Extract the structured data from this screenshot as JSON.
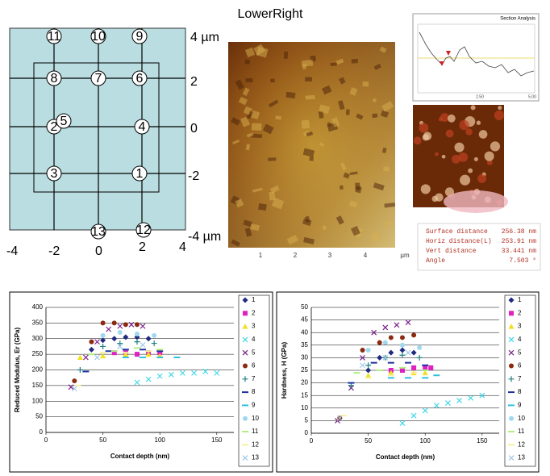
{
  "diagram": {
    "points": [
      "11",
      "10",
      "9",
      "8",
      "7",
      "6",
      "2",
      "5",
      "4",
      "3",
      "1",
      "13",
      "12"
    ],
    "right_labels": [
      "4 µm",
      "2",
      "0",
      "-2",
      "-4 µm"
    ],
    "bottom_labels": [
      "-4",
      "-2",
      "0",
      "2",
      "4"
    ]
  },
  "image": {
    "title": "LowerRight",
    "xticks": [
      "1",
      "2",
      "3",
      "4"
    ],
    "unit": "µm"
  },
  "section": {
    "title": "Section Analysis",
    "xticks": [
      "2.50",
      "5.00"
    ],
    "table": [
      [
        "Surface distance",
        "256.38 nm"
      ],
      [
        "Horiz distance(L)",
        "253.91 nm"
      ],
      [
        "Vert distance",
        "33.441 nm"
      ],
      [
        "Angle",
        "7.503 °"
      ]
    ]
  },
  "chart_data": [
    {
      "type": "scatter",
      "x_label": "Contact depth (nm)",
      "y_label": "Reduced Modulus, Er (GPa)",
      "xlim": [
        0,
        165
      ],
      "xticks": [
        0,
        50,
        100,
        150
      ],
      "ylim": [
        0,
        400
      ],
      "yticks": [
        0,
        50,
        100,
        150,
        200,
        250,
        300,
        350,
        400
      ],
      "grid": true,
      "series": [
        {
          "name": "1",
          "color": "#1f2a80",
          "marker": "diamond",
          "x": [
            40,
            50,
            60,
            70,
            80,
            90
          ],
          "y": [
            265,
            295,
            300,
            305,
            305,
            300
          ]
        },
        {
          "name": "2",
          "color": "#e020c0",
          "marker": "square",
          "x": [
            60,
            70,
            80,
            90,
            100
          ],
          "y": [
            255,
            255,
            250,
            255,
            255
          ]
        },
        {
          "name": "3",
          "color": "#f0e020",
          "marker": "triangle",
          "x": [
            30,
            50,
            70,
            90,
            100
          ],
          "y": [
            240,
            245,
            250,
            250,
            245
          ]
        },
        {
          "name": "4",
          "color": "#40d8e8",
          "marker": "x",
          "x": [
            80,
            90,
            100,
            110,
            120,
            130,
            140,
            150
          ],
          "y": [
            160,
            170,
            180,
            185,
            190,
            190,
            195,
            190
          ]
        },
        {
          "name": "5",
          "color": "#7a1f8a",
          "marker": "x",
          "x": [
            22,
            35,
            45,
            55,
            65,
            75,
            85
          ],
          "y": [
            145,
            240,
            290,
            330,
            340,
            345,
            340
          ]
        },
        {
          "name": "6",
          "color": "#8b2a10",
          "marker": "circle",
          "x": [
            25,
            40,
            50,
            60,
            70,
            80
          ],
          "y": [
            165,
            290,
            350,
            350,
            345,
            345
          ]
        },
        {
          "name": "7",
          "color": "#208080",
          "marker": "plus",
          "x": [
            30,
            50,
            65,
            80,
            95
          ],
          "y": [
            200,
            275,
            285,
            290,
            285
          ]
        },
        {
          "name": "8",
          "color": "#2030a0",
          "marker": "dash",
          "x": [
            35,
            55,
            70,
            85,
            100
          ],
          "y": [
            195,
            260,
            265,
            265,
            260
          ]
        },
        {
          "name": "9",
          "color": "#30c0e0",
          "marker": "dash",
          "x": [
            70,
            85,
            100,
            115
          ],
          "y": [
            240,
            240,
            240,
            240
          ]
        },
        {
          "name": "10",
          "color": "#a0d8f0",
          "marker": "circle",
          "x": [
            50,
            65,
            80,
            95
          ],
          "y": [
            310,
            320,
            315,
            310
          ]
        },
        {
          "name": "11",
          "color": "#b0f080",
          "marker": "dash",
          "x": [
            40,
            60,
            80,
            100
          ],
          "y": [
            250,
            260,
            270,
            265
          ]
        },
        {
          "name": "12",
          "color": "#f8f0a0",
          "marker": "dash",
          "x": [
            28,
            50,
            70,
            90
          ],
          "y": [
            150,
            255,
            255,
            260
          ]
        },
        {
          "name": "13",
          "color": "#a0c8e8",
          "marker": "x",
          "x": [
            25,
            45,
            65,
            85
          ],
          "y": [
            140,
            240,
            275,
            280
          ]
        }
      ]
    },
    {
      "type": "scatter",
      "x_label": "Contact depth (nm)",
      "y_label": "Hardness, H (GPa)",
      "xlim": [
        0,
        165
      ],
      "xticks": [
        0,
        50,
        100,
        150
      ],
      "ylim": [
        0,
        50
      ],
      "yticks": [
        0,
        5,
        10,
        15,
        20,
        25,
        30,
        35,
        40,
        45,
        50
      ],
      "grid": true,
      "series": [
        {
          "name": "1",
          "color": "#1f2a80",
          "marker": "diamond",
          "x": [
            50,
            60,
            70,
            80,
            90
          ],
          "y": [
            25,
            30,
            32,
            33,
            32
          ]
        },
        {
          "name": "2",
          "color": "#e020c0",
          "marker": "square",
          "x": [
            70,
            80,
            90,
            100,
            105
          ],
          "y": [
            25,
            25,
            26,
            26,
            26
          ]
        },
        {
          "name": "3",
          "color": "#f0e020",
          "marker": "triangle",
          "x": [
            50,
            70,
            90,
            100
          ],
          "y": [
            23,
            24,
            24,
            24
          ]
        },
        {
          "name": "4",
          "color": "#40d8e8",
          "marker": "x",
          "x": [
            80,
            90,
            100,
            110,
            120,
            130,
            140,
            150
          ],
          "y": [
            4,
            7,
            9,
            11,
            12,
            13,
            14,
            15
          ]
        },
        {
          "name": "5",
          "color": "#7a1f8a",
          "marker": "x",
          "x": [
            23,
            35,
            45,
            55,
            65,
            75,
            85
          ],
          "y": [
            5,
            18,
            30,
            40,
            42,
            43,
            44
          ]
        },
        {
          "name": "6",
          "color": "#8b2a10",
          "marker": "circle",
          "x": [
            25,
            45,
            60,
            70,
            80,
            90
          ],
          "y": [
            6,
            33,
            36,
            38,
            38,
            39
          ]
        },
        {
          "name": "7",
          "color": "#208080",
          "marker": "plus",
          "x": [
            35,
            50,
            65,
            80,
            95
          ],
          "y": [
            19,
            27,
            30,
            31,
            30
          ]
        },
        {
          "name": "8",
          "color": "#2030a0",
          "marker": "dash",
          "x": [
            35,
            55,
            70,
            85,
            100
          ],
          "y": [
            20,
            28,
            28,
            28,
            27
          ]
        },
        {
          "name": "9",
          "color": "#30c0e0",
          "marker": "dash",
          "x": [
            70,
            85,
            100,
            110
          ],
          "y": [
            22,
            22,
            22,
            23
          ]
        },
        {
          "name": "10",
          "color": "#a0d8f0",
          "marker": "circle",
          "x": [
            50,
            65,
            80,
            95
          ],
          "y": [
            33,
            36,
            35,
            34
          ]
        },
        {
          "name": "11",
          "color": "#b0f080",
          "marker": "dash",
          "x": [
            40,
            60,
            80,
            100
          ],
          "y": [
            24,
            25,
            26,
            25
          ]
        },
        {
          "name": "12",
          "color": "#f8f0a0",
          "marker": "dash",
          "x": [
            28,
            50,
            70,
            90
          ],
          "y": [
            7,
            22,
            23,
            24
          ]
        },
        {
          "name": "13",
          "color": "#a0c8e8",
          "marker": "x",
          "x": [
            25,
            45,
            65,
            85
          ],
          "y": [
            6,
            27,
            30,
            32
          ]
        }
      ]
    }
  ]
}
